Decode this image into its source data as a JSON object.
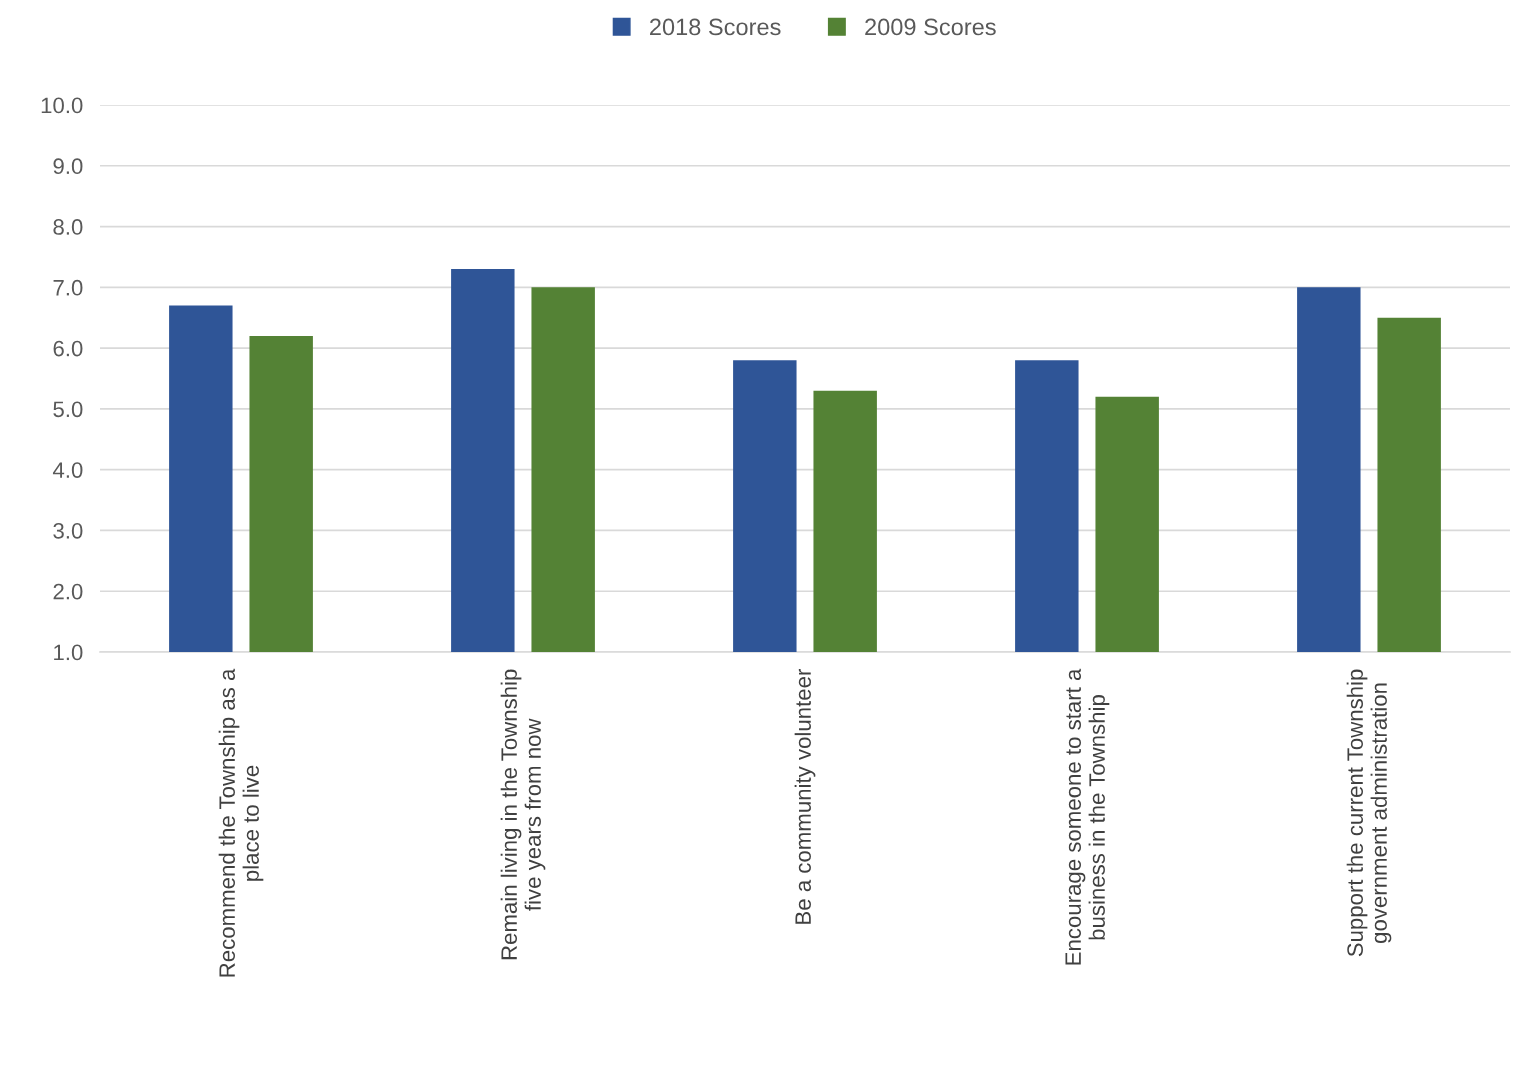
{
  "chart_data": {
    "type": "bar",
    "categories": [
      "Recommend the Township as a\nplace to live",
      "Remain living in the Township\nfive years from now",
      "Be a community volunteer",
      "Encourage someone to start a\nbusiness in the Township",
      "Support the current Township\ngovernment administration"
    ],
    "series": [
      {
        "name": "2018 Scores",
        "color": "#2f5597",
        "values": [
          6.7,
          7.3,
          5.8,
          5.8,
          7.0
        ]
      },
      {
        "name": "2009 Scores",
        "color": "#548235",
        "values": [
          6.2,
          7.0,
          5.3,
          5.2,
          6.5
        ]
      }
    ],
    "ylim": [
      1.0,
      10.0
    ],
    "yticks": [
      {
        "value": 1,
        "label": "1.0"
      },
      {
        "value": 2,
        "label": "2.0"
      },
      {
        "value": 3,
        "label": "3.0"
      },
      {
        "value": 4,
        "label": "4.0"
      },
      {
        "value": 5,
        "label": "5.0"
      },
      {
        "value": 6,
        "label": "6.0"
      },
      {
        "value": 7,
        "label": "7.0"
      },
      {
        "value": 8,
        "label": "8.0"
      },
      {
        "value": 9,
        "label": "9.0"
      },
      {
        "value": 10,
        "label": "10.0"
      }
    ],
    "grid": "y",
    "legend": "top"
  }
}
